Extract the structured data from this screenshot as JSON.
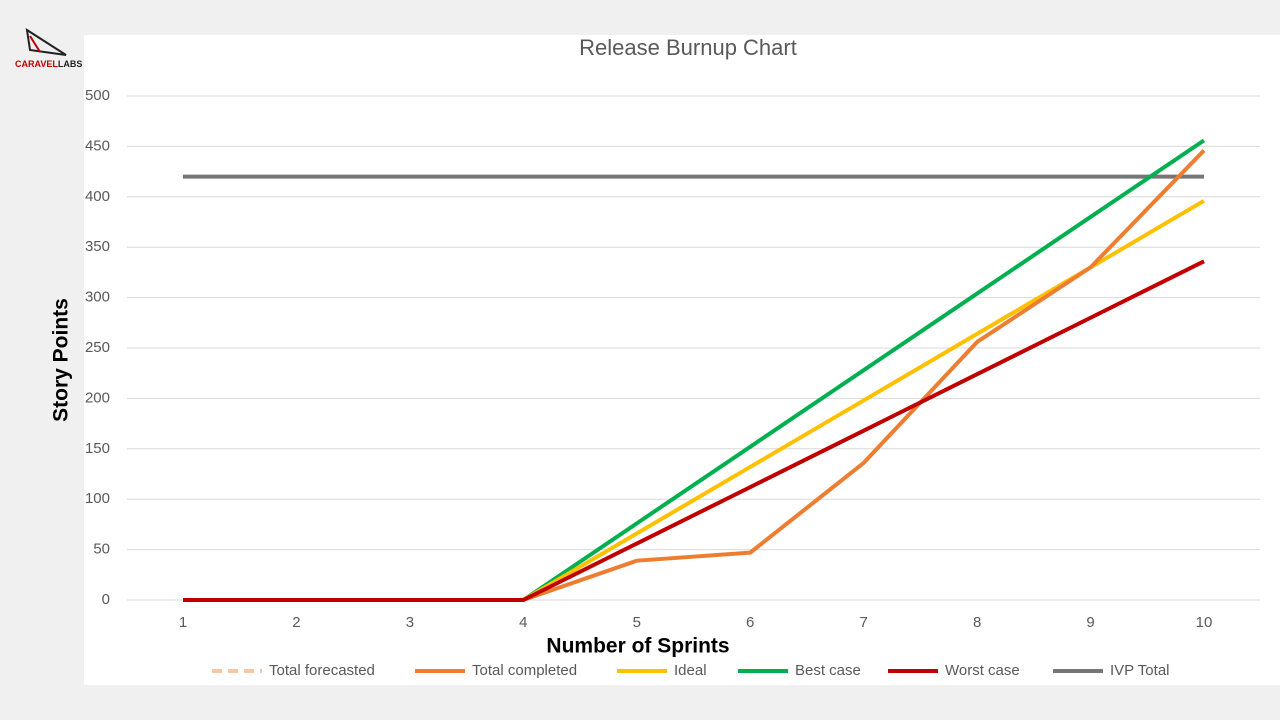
{
  "logo": {
    "brand": "CARAVEL",
    "suffix": "LABS"
  },
  "chart_data": {
    "type": "line",
    "title": "Release Burnup Chart",
    "x_label": "Number of Sprints",
    "y_label": "Story Points",
    "categories": [
      "1",
      "2",
      "3",
      "4",
      "5",
      "6",
      "7",
      "8",
      "9",
      "10"
    ],
    "ylim": [
      0,
      500
    ],
    "yticks": [
      0,
      50,
      100,
      150,
      200,
      250,
      300,
      350,
      400,
      450,
      500
    ],
    "grid": true,
    "legend": "bottom",
    "series": [
      {
        "name": "Total forecasted",
        "color": "#f4c7a8",
        "dashed": true,
        "values": [
          null,
          null,
          null,
          null,
          null,
          null,
          null,
          null,
          null,
          null
        ]
      },
      {
        "name": "Total completed",
        "color": "#ed7d31",
        "values": [
          0,
          0,
          0,
          0,
          39,
          47,
          136,
          256,
          330,
          446
        ]
      },
      {
        "name": "Ideal",
        "color": "#ffc000",
        "values": [
          0,
          0,
          0,
          0,
          66,
          132,
          198,
          264,
          330,
          396
        ]
      },
      {
        "name": "Best case",
        "color": "#00b050",
        "values": [
          0,
          0,
          0,
          0,
          76,
          152,
          228,
          304,
          380,
          456
        ]
      },
      {
        "name": "Worst case",
        "color": "#c00000",
        "values": [
          0,
          0,
          0,
          0,
          56,
          112,
          168,
          224,
          280,
          336
        ]
      },
      {
        "name": "IVP Total",
        "color": "#767676",
        "values": [
          420,
          420,
          420,
          420,
          420,
          420,
          420,
          420,
          420,
          420
        ]
      }
    ]
  }
}
